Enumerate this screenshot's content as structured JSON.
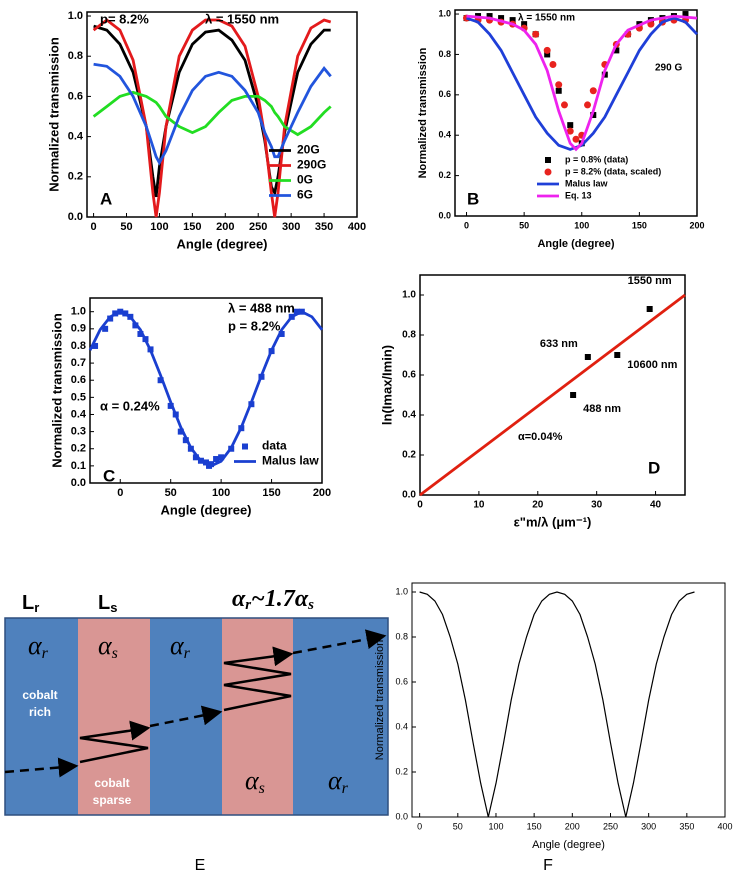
{
  "chart_data": [
    {
      "type": "line",
      "xlabel": "Angle (degree)",
      "ylabel": "Normalized transmission",
      "xlim": [
        -10,
        400
      ],
      "ylim": [
        0,
        1.02
      ],
      "xticks": [
        0,
        50,
        100,
        150,
        200,
        250,
        300,
        350,
        400
      ],
      "yticks": [
        {
          "value": 0,
          "label": "0.0"
        },
        {
          "value": 0.2,
          "label": "0.2"
        },
        {
          "value": 0.4,
          "label": "0.4"
        },
        {
          "value": 0.6,
          "label": "0.6"
        },
        {
          "value": 0.8,
          "label": "0.8"
        },
        {
          "value": 1.0,
          "label": "1.0"
        }
      ],
      "legend": "lower right",
      "annotations": [
        "p= 8.2%",
        "λ = 1550 nm",
        "A"
      ],
      "x": [
        0,
        20,
        40,
        60,
        80,
        90,
        95,
        100,
        110,
        130,
        150,
        170,
        190,
        210,
        230,
        250,
        260,
        270,
        275,
        280,
        290,
        310,
        330,
        350,
        360
      ],
      "series": [
        {
          "name": "20G",
          "color": "#000000",
          "mode": "line",
          "values": [
            0.95,
            0.93,
            0.86,
            0.72,
            0.45,
            0.2,
            0.1,
            0.25,
            0.45,
            0.72,
            0.86,
            0.92,
            0.93,
            0.88,
            0.78,
            0.55,
            0.38,
            0.15,
            0.12,
            0.2,
            0.42,
            0.72,
            0.86,
            0.93,
            0.93
          ]
        },
        {
          "name": "290G",
          "color": "#e31a1c",
          "mode": "line",
          "values": [
            0.93,
            0.98,
            0.93,
            0.78,
            0.45,
            0.12,
            0.0,
            0.12,
            0.45,
            0.8,
            0.93,
            0.98,
            0.98,
            0.95,
            0.85,
            0.6,
            0.4,
            0.12,
            0.0,
            0.12,
            0.45,
            0.8,
            0.94,
            0.98,
            0.97
          ]
        },
        {
          "name": "0G",
          "color": "#22dd22",
          "mode": "line",
          "values": [
            0.5,
            0.55,
            0.6,
            0.62,
            0.6,
            0.58,
            0.57,
            0.55,
            0.5,
            0.45,
            0.42,
            0.45,
            0.52,
            0.58,
            0.6,
            0.6,
            0.58,
            0.55,
            0.52,
            0.5,
            0.45,
            0.41,
            0.45,
            0.52,
            0.55
          ]
        },
        {
          "name": "6G",
          "color": "#2255dd",
          "mode": "line",
          "values": [
            0.76,
            0.75,
            0.7,
            0.6,
            0.45,
            0.35,
            0.3,
            0.27,
            0.33,
            0.5,
            0.63,
            0.7,
            0.72,
            0.7,
            0.63,
            0.52,
            0.42,
            0.35,
            0.3,
            0.3,
            0.38,
            0.52,
            0.65,
            0.74,
            0.7
          ]
        }
      ]
    },
    {
      "type": "line",
      "xlabel": "Angle (degree)",
      "ylabel": "Normalized transmission",
      "xlim": [
        -10,
        200
      ],
      "ylim": [
        0,
        1.02
      ],
      "xticks": [
        0,
        50,
        100,
        150,
        200
      ],
      "yticks": [
        {
          "value": 0,
          "label": "0.0"
        },
        {
          "value": 0.2,
          "label": "0.2"
        },
        {
          "value": 0.4,
          "label": "0.4"
        },
        {
          "value": 0.6,
          "label": "0.6"
        },
        {
          "value": 0.8,
          "label": "0.8"
        },
        {
          "value": 1.0,
          "label": "1.0"
        }
      ],
      "legend": "lower right",
      "annotations": [
        "λ = 1550 nm",
        "290 G",
        "B"
      ],
      "series": [
        {
          "name": "p = 0.8% (data)",
          "color": "#000000",
          "mode": "markers",
          "marker": "square",
          "x": [
            0,
            10,
            20,
            30,
            40,
            50,
            60,
            70,
            80,
            90,
            100,
            110,
            120,
            130,
            140,
            150,
            160,
            170,
            180,
            190
          ],
          "values": [
            0.98,
            0.99,
            0.99,
            0.98,
            0.97,
            0.95,
            0.9,
            0.8,
            0.62,
            0.45,
            0.36,
            0.5,
            0.7,
            0.82,
            0.9,
            0.95,
            0.97,
            0.98,
            0.99,
            1.0
          ]
        },
        {
          "name": "p = 8.2% (data, scaled)",
          "color": "#e8231e",
          "mode": "markers",
          "marker": "circle",
          "x": [
            0,
            10,
            20,
            30,
            40,
            50,
            60,
            70,
            75,
            80,
            85,
            90,
            95,
            100,
            105,
            110,
            120,
            130,
            140,
            150,
            160,
            170,
            180,
            190
          ],
          "values": [
            0.98,
            0.97,
            0.97,
            0.96,
            0.95,
            0.93,
            0.9,
            0.82,
            0.75,
            0.65,
            0.55,
            0.42,
            0.38,
            0.4,
            0.55,
            0.62,
            0.75,
            0.85,
            0.9,
            0.93,
            0.95,
            0.96,
            0.97,
            0.97
          ]
        },
        {
          "name": "Malus law",
          "color": "#1f3fd8",
          "mode": "line",
          "x": [
            0,
            10,
            20,
            30,
            40,
            50,
            60,
            70,
            80,
            90,
            100,
            110,
            120,
            130,
            140,
            150,
            160,
            170,
            180,
            190,
            200
          ],
          "values": [
            0.98,
            0.96,
            0.9,
            0.82,
            0.71,
            0.6,
            0.49,
            0.41,
            0.35,
            0.33,
            0.35,
            0.41,
            0.49,
            0.6,
            0.71,
            0.82,
            0.9,
            0.96,
            0.98,
            0.96,
            0.9
          ]
        },
        {
          "name": "Eq. 13",
          "color": "#ee22ee",
          "mode": "line",
          "x": [
            0,
            20,
            40,
            50,
            60,
            70,
            80,
            90,
            95,
            100,
            110,
            120,
            130,
            140,
            160,
            180,
            200
          ],
          "values": [
            0.99,
            0.98,
            0.95,
            0.92,
            0.85,
            0.72,
            0.52,
            0.36,
            0.33,
            0.36,
            0.52,
            0.72,
            0.85,
            0.92,
            0.97,
            0.99,
            0.98
          ]
        }
      ]
    },
    {
      "type": "line",
      "xlabel": "Angle (degree)",
      "ylabel": "Normalized transmission",
      "xlim": [
        -30,
        200
      ],
      "ylim": [
        0,
        1.08
      ],
      "xticks": [
        0,
        50,
        100,
        150,
        200
      ],
      "yticks": [
        {
          "value": 0,
          "label": "0.0"
        },
        0.1,
        0.2,
        0.3,
        0.4,
        0.5,
        0.6,
        0.7,
        0.8,
        0.9,
        {
          "value": 1.0,
          "label": "1.0"
        }
      ],
      "legend": "lower right",
      "annotations": [
        "λ = 488 nm",
        "p = 8.2%",
        "α = 0.24%",
        "C"
      ],
      "series": [
        {
          "name": "data",
          "color": "#1a3fd0",
          "mode": "markers",
          "marker": "square",
          "x": [
            -25,
            -15,
            -10,
            -5,
            0,
            5,
            10,
            15,
            20,
            25,
            30,
            40,
            50,
            55,
            60,
            65,
            70,
            75,
            80,
            85,
            88,
            90,
            95,
            100,
            110,
            120,
            130,
            140,
            150,
            160,
            170,
            175,
            180
          ],
          "values": [
            0.8,
            0.9,
            0.96,
            0.99,
            1.0,
            0.99,
            0.97,
            0.92,
            0.87,
            0.84,
            0.78,
            0.6,
            0.45,
            0.4,
            0.3,
            0.25,
            0.2,
            0.15,
            0.13,
            0.12,
            0.1,
            0.11,
            0.14,
            0.15,
            0.2,
            0.32,
            0.46,
            0.62,
            0.77,
            0.87,
            0.97,
            1.0,
            1.0
          ]
        },
        {
          "name": "Malus law",
          "color": "#1a3fd0",
          "mode": "line",
          "x": [
            -30,
            -20,
            -10,
            0,
            10,
            20,
            30,
            40,
            50,
            60,
            70,
            80,
            90,
            100,
            110,
            120,
            130,
            140,
            150,
            160,
            170,
            180,
            190,
            200
          ],
          "values": [
            0.775,
            0.895,
            0.97,
            1.0,
            0.97,
            0.895,
            0.775,
            0.628,
            0.472,
            0.325,
            0.205,
            0.127,
            0.1,
            0.127,
            0.205,
            0.325,
            0.472,
            0.628,
            0.775,
            0.895,
            0.97,
            1.0,
            0.97,
            0.895
          ]
        }
      ]
    },
    {
      "type": "scatter",
      "xlabel": "ε\"m/λ (μm⁻¹)",
      "ylabel": "ln(Imax/Imin)",
      "xlim": [
        0,
        45
      ],
      "ylim": [
        0,
        1.1
      ],
      "xticks": [
        0,
        10,
        20,
        30,
        40
      ],
      "yticks": [
        {
          "value": 0,
          "label": "0.0"
        },
        0.2,
        0.4,
        0.6,
        0.8,
        {
          "value": 1.0,
          "label": "1.0"
        }
      ],
      "annotations": [
        "α=0.04%",
        "D"
      ],
      "series": [
        {
          "color": "#000000",
          "mode": "markers",
          "marker": "square",
          "x": [
            26,
            28.5,
            33.5,
            39
          ],
          "values": [
            0.5,
            0.69,
            0.7,
            0.93
          ],
          "labels": [
            "488 nm",
            "633 nm",
            "10600 nm",
            "1550 nm"
          ]
        },
        {
          "color": "#e02010",
          "mode": "line",
          "x": [
            0,
            45
          ],
          "values": [
            0,
            1.0
          ]
        }
      ]
    },
    {
      "type": "line",
      "xlabel": "Angle (degree)",
      "ylabel": "Normalized transmission",
      "xlim": [
        -10,
        400
      ],
      "ylim": [
        0,
        1.04
      ],
      "xticks": [
        0,
        50,
        100,
        150,
        200,
        250,
        300,
        350,
        400
      ],
      "yticks": [
        {
          "value": 0,
          "label": "0.0"
        },
        {
          "value": 0.2,
          "label": "0.2"
        },
        {
          "value": 0.4,
          "label": "0.4"
        },
        {
          "value": 0.6,
          "label": "0.6"
        },
        {
          "value": 0.8,
          "label": "0.8"
        },
        {
          "value": 1.0,
          "label": "1.0"
        }
      ],
      "annotations": [
        "F"
      ],
      "series": [
        {
          "color": "#000000",
          "mode": "line",
          "x": [
            0,
            10,
            20,
            30,
            40,
            50,
            60,
            70,
            80,
            90,
            100,
            110,
            120,
            130,
            140,
            150,
            160,
            170,
            180,
            190,
            200,
            210,
            220,
            230,
            240,
            250,
            260,
            270,
            280,
            290,
            300,
            310,
            320,
            330,
            340,
            350,
            360
          ],
          "values": [
            1.0,
            0.99,
            0.96,
            0.9,
            0.8,
            0.68,
            0.52,
            0.33,
            0.15,
            0.0,
            0.15,
            0.33,
            0.52,
            0.68,
            0.8,
            0.9,
            0.96,
            0.99,
            1.0,
            0.99,
            0.96,
            0.9,
            0.8,
            0.68,
            0.52,
            0.33,
            0.15,
            0.0,
            0.15,
            0.33,
            0.52,
            0.68,
            0.8,
            0.9,
            0.96,
            0.99,
            1.0
          ]
        }
      ]
    }
  ],
  "diagram": {
    "columns": [
      {
        "name": "L",
        "sub": "r"
      },
      {
        "name": "L",
        "sub": "s"
      }
    ],
    "relation": [
      "α",
      "r",
      "~1.7",
      "α",
      "s"
    ],
    "layers": [
      {
        "symbol": "α",
        "sub": "r",
        "note": [
          "cobalt",
          "rich"
        ]
      },
      {
        "symbol": "α",
        "sub": "s",
        "note": [
          "cobalt",
          "sparse"
        ]
      },
      {
        "symbol": "α",
        "sub": "r"
      },
      {
        "symbol": "α",
        "sub": "s"
      },
      {
        "symbol": "α",
        "sub": "r"
      }
    ],
    "panel": "E"
  }
}
